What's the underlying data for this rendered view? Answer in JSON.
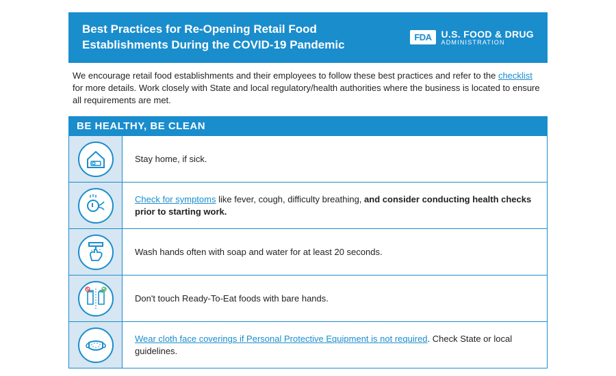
{
  "colors": {
    "primary": "#1a8dcd",
    "lightbg": "#d6e6f2",
    "text": "#222222",
    "white": "#ffffff"
  },
  "header": {
    "title": "Best Practices for Re-Opening Retail Food Establishments During the COVID-19 Pandemic",
    "badge": "FDA",
    "brand_main": "U.S. FOOD & DRUG",
    "brand_sub": "ADMINISTRATION"
  },
  "intro": {
    "pre": "We encourage retail food establishments and their employees to follow these best practices and refer to the ",
    "link": "checklist",
    "post": " for more details. Work closely with State and local regulatory/health authorities where the business is located to ensure all requirements are met."
  },
  "section": {
    "title": "BE HEALTHY, BE CLEAN"
  },
  "rows": [
    {
      "icon": "home",
      "segments": [
        {
          "text": "Stay home, if sick.",
          "link": false,
          "bold": false
        }
      ]
    },
    {
      "icon": "symptoms",
      "segments": [
        {
          "text": "Check for symptoms",
          "link": true,
          "bold": false
        },
        {
          "text": " like fever, cough, difficulty breathing, ",
          "link": false,
          "bold": false
        },
        {
          "text": "and consider conducting health checks prior to starting work.",
          "link": false,
          "bold": true
        }
      ]
    },
    {
      "icon": "wash",
      "segments": [
        {
          "text": "Wash hands often with soap and water for at least 20 seconds.",
          "link": false,
          "bold": false
        }
      ]
    },
    {
      "icon": "gloves",
      "segments": [
        {
          "text": "Don't touch Ready-To-Eat foods with bare hands.",
          "link": false,
          "bold": false
        }
      ]
    },
    {
      "icon": "mask",
      "segments": [
        {
          "text": "Wear cloth face coverings if Personal Protective Equipment is not required",
          "link": true,
          "bold": false
        },
        {
          "text": ". Check State or local guidelines.",
          "link": false,
          "bold": false
        }
      ]
    }
  ]
}
